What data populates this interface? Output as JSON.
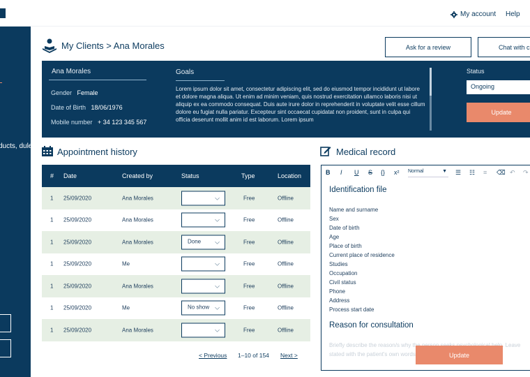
{
  "topbar": {
    "account": "My account",
    "help": "Help"
  },
  "sidebar": {
    "text": "ducts, dule"
  },
  "header": {
    "title": "My Clients > Ana Morales",
    "ask_review": "Ask for a review",
    "chat": "Chat with c"
  },
  "client": {
    "name": "Ana Morales",
    "gender_label": "Gender",
    "gender": "Female",
    "dob_label": "Date of Birth",
    "dob": "18/06/1976",
    "mobile_label": "Mobile number",
    "mobile": "+ 34 123 345 567",
    "goals_label": "Goals",
    "goals_text": "Lorem ipsum dolor sit amet, consectetur adipiscing elit, sed do eiusmod tempor incididunt ut labore et dolore magna aliqua. Ut enim ad minim veniam, quis nostrud exercitation ullamco laboris nisi ut aliquip ex ea commodo consequat. Duis aute irure dolor in reprehenderit in voluptate velit esse cillum dolore eu fugiat nulla pariatur. Excepteur sint occaecat cupidatat non proident, sunt in culpa qui officia deserunt mollit anim id est laborum. Lorem ipsum",
    "status_label": "Status",
    "status_value": "Ongoing",
    "update": "Update"
  },
  "appointments": {
    "title": "Appointment history",
    "columns": [
      "#",
      "Date",
      "Created by",
      "Status",
      "Type",
      "Location"
    ],
    "rows": [
      {
        "num": "1",
        "date": "25/09/2020",
        "by": "Ana Morales",
        "status": "",
        "type": "Free",
        "location": "Offline"
      },
      {
        "num": "1",
        "date": "25/09/2020",
        "by": "Ana Morales",
        "status": "",
        "type": "Free",
        "location": "Offline"
      },
      {
        "num": "1",
        "date": "25/09/2020",
        "by": "Ana Morales",
        "status": "Done",
        "type": "Free",
        "location": "Offline"
      },
      {
        "num": "1",
        "date": "25/09/2020",
        "by": "Me",
        "status": "",
        "type": "Free",
        "location": "Offline"
      },
      {
        "num": "1",
        "date": "25/09/2020",
        "by": "Ana Morales",
        "status": "",
        "type": "Free",
        "location": "Offline"
      },
      {
        "num": "1",
        "date": "25/09/2020",
        "by": "Me",
        "status": "No show",
        "type": "Free",
        "location": "Offline"
      },
      {
        "num": "1",
        "date": "25/09/2020",
        "by": "Ana Morales",
        "status": "",
        "type": "Free",
        "location": "Offline"
      }
    ],
    "pager": {
      "prev": "< Previous",
      "range": "1–10 of 154",
      "next": "Next >"
    }
  },
  "medical": {
    "title": "Medical record",
    "toolbar_select": "Normal",
    "id_heading": "Identification file",
    "fields": [
      "Name and surname",
      "Sex",
      "Date of birth",
      "Age",
      "Place of birth",
      "Current place of residence",
      "Studies",
      "Occupation",
      "Civil status",
      "Phone",
      "Address",
      "Process start date"
    ],
    "reason_heading": "Reason for consultation",
    "reason_placeholder": "Briefly describe the reason/s why the person seeks psychological help. Leave stated with the patient's own words.",
    "update": "Update"
  },
  "colors": {
    "navy": "#0b3a5e",
    "coral": "#e9896b",
    "row_alt": "#e6efe4"
  }
}
